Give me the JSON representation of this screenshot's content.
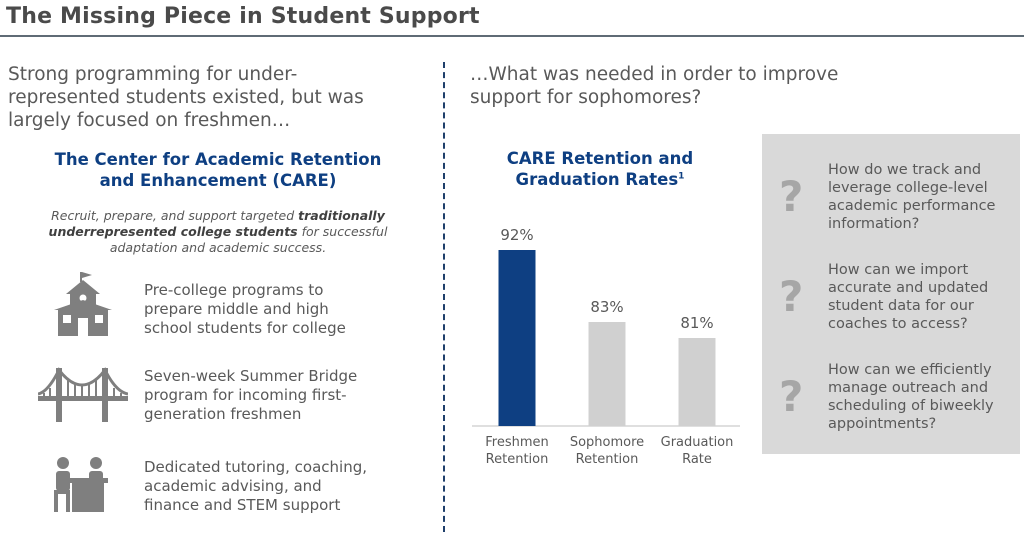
{
  "title": "The Missing Piece in Student Support",
  "left": {
    "lead": [
      "Strong programming for under-",
      "represented students existed, but was",
      "largely focused on freshmen…"
    ],
    "care_title": [
      "The Center for Academic Retention",
      "and Enhancement (CARE)"
    ],
    "care_desc": {
      "part1": "Recruit, prepare, and support targeted ",
      "bold": "traditionally underrepresented college students",
      "part2": " for successful adaptation and academic success."
    },
    "items": [
      {
        "icon": "schoolhouse-icon",
        "lines": [
          "Pre-college programs to",
          "prepare middle and high",
          "school students for college"
        ]
      },
      {
        "icon": "bridge-icon",
        "lines": [
          "Seven-week Summer Bridge",
          "program for incoming first-",
          "generation freshmen"
        ]
      },
      {
        "icon": "tutoring-desk-icon",
        "lines": [
          "Dedicated tutoring, coaching,",
          "academic advising, and",
          "finance and STEM support"
        ]
      }
    ]
  },
  "right": {
    "lead": [
      "…What was needed in order to improve",
      "support for sophomores?"
    ],
    "questions": [
      {
        "icon": "question-mark-icon",
        "lines": [
          "How do we track and",
          "leverage college-level",
          "academic performance",
          "information?"
        ]
      },
      {
        "icon": "question-mark-icon",
        "lines": [
          "How can we import",
          "accurate and updated",
          "student data for our",
          "coaches to access?"
        ]
      },
      {
        "icon": "question-mark-icon",
        "lines": [
          "How can we efficiently",
          "manage outreach and",
          "scheduling of biweekly",
          "appointments?"
        ]
      }
    ]
  },
  "chart_data": {
    "type": "bar",
    "title": "CARE Retention and Graduation Rates",
    "title_footnote": "1",
    "title_lines": [
      "CARE Retention and",
      "Graduation Rates"
    ],
    "categories": [
      "Freshmen Retention",
      "Sophomore Retention",
      "Graduation Rate"
    ],
    "category_lines": [
      [
        "Freshmen",
        "Retention"
      ],
      [
        "Sophomore",
        "Retention"
      ],
      [
        "Graduation",
        "Rate"
      ]
    ],
    "values": [
      92,
      83,
      81
    ],
    "value_labels": [
      "92%",
      "83%",
      "81%"
    ],
    "colors": [
      "#0e3f82",
      "#d0d0d0",
      "#d0d0d0"
    ],
    "ylim": [
      0,
      100
    ],
    "xlabel": "",
    "ylabel": "",
    "grid": false
  }
}
